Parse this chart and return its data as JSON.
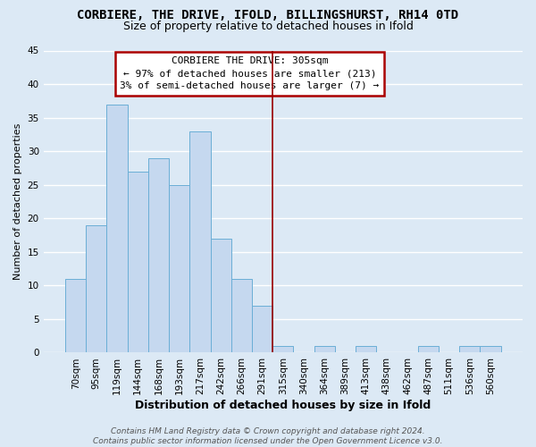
{
  "title": "CORBIERE, THE DRIVE, IFOLD, BILLINGSHURST, RH14 0TD",
  "subtitle": "Size of property relative to detached houses in Ifold",
  "xlabel": "Distribution of detached houses by size in Ifold",
  "ylabel": "Number of detached properties",
  "bar_labels": [
    "70sqm",
    "95sqm",
    "119sqm",
    "144sqm",
    "168sqm",
    "193sqm",
    "217sqm",
    "242sqm",
    "266sqm",
    "291sqm",
    "315sqm",
    "340sqm",
    "364sqm",
    "389sqm",
    "413sqm",
    "438sqm",
    "462sqm",
    "487sqm",
    "511sqm",
    "536sqm",
    "560sqm"
  ],
  "bar_values": [
    11,
    19,
    37,
    27,
    29,
    25,
    33,
    17,
    11,
    7,
    1,
    0,
    1,
    0,
    1,
    0,
    0,
    1,
    0,
    1,
    1
  ],
  "bar_color": "#c5d8ef",
  "bar_edge_color": "#6aaed6",
  "ylim": [
    0,
    45
  ],
  "yticks": [
    0,
    5,
    10,
    15,
    20,
    25,
    30,
    35,
    40,
    45
  ],
  "annotation_title": "CORBIERE THE DRIVE: 305sqm",
  "annotation_line1": "← 97% of detached houses are smaller (213)",
  "annotation_line2": "3% of semi-detached houses are larger (7) →",
  "annotation_box_edge_color": "#aa0000",
  "vline_x": 9.5,
  "vline_color": "#990000",
  "footer1": "Contains HM Land Registry data © Crown copyright and database right 2024.",
  "footer2": "Contains public sector information licensed under the Open Government Licence v3.0.",
  "background_color": "#dce9f5",
  "grid_color": "#ffffff",
  "title_fontsize": 10,
  "subtitle_fontsize": 9,
  "xlabel_fontsize": 9,
  "ylabel_fontsize": 8,
  "tick_fontsize": 7.5,
  "footer_fontsize": 6.5,
  "ann_fontsize": 8
}
